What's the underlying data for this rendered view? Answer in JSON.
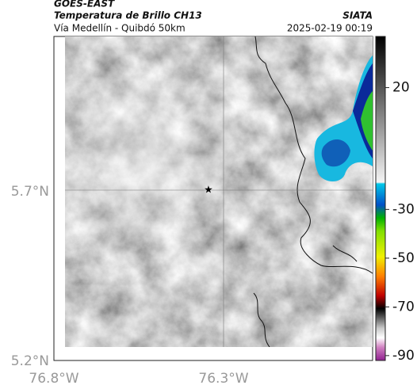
{
  "header": {
    "source": "GOES-EAST",
    "title": "Temperatura de Brillo CH13",
    "subtitle": "Vía Medellín - Quibdó 50km",
    "agency": "SIATA",
    "datetime": "2025-02-19 00:19"
  },
  "map": {
    "lat_labels": [
      "5.7°N",
      "5.2°N"
    ],
    "lon_labels": [
      "76.8°W",
      "76.3°W"
    ]
  },
  "colorbar": {
    "clim": [
      -92,
      41
    ],
    "ticks": [
      20,
      -30,
      -50,
      -70,
      -90
    ]
  }
}
